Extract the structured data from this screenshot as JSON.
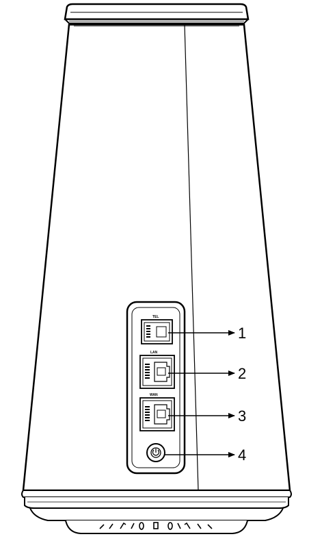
{
  "ports": {
    "tel_label": "TEL",
    "lan_label": "LAN",
    "wan_label": "WAN"
  },
  "callouts": [
    "1",
    "2",
    "3",
    "4"
  ],
  "colors": {
    "outline": "#000000",
    "background": "#ffffff"
  }
}
